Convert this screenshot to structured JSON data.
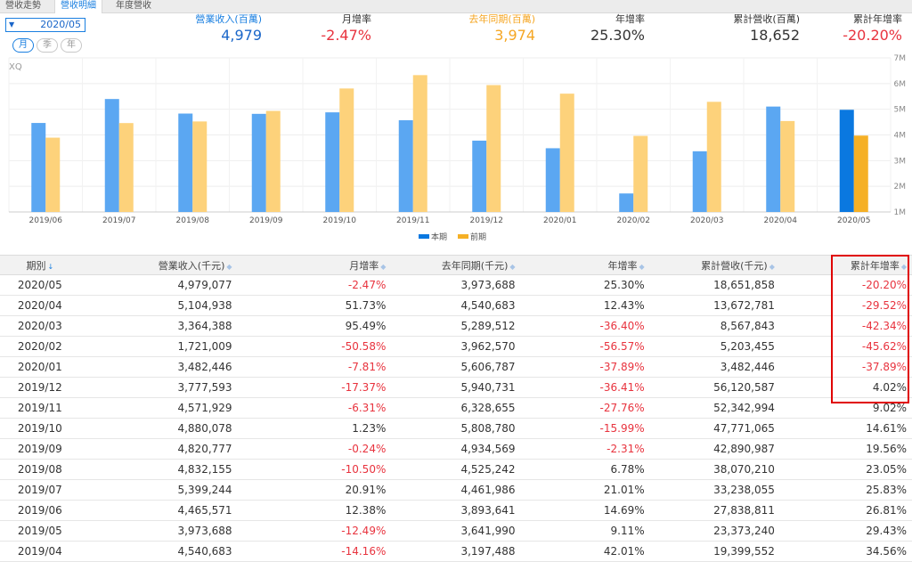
{
  "tabs": [
    "營收走勢",
    "營收明細",
    "年度營收"
  ],
  "active_tab": 1,
  "period": {
    "selected": "2020/05",
    "buttons": [
      "月",
      "季",
      "年"
    ],
    "active": 0
  },
  "stats": [
    {
      "label": "營業收入(百萬)",
      "value": "4,979",
      "label_color": "#1a7fe0",
      "value_color": "#1a66c9"
    },
    {
      "label": "月增率",
      "value": "-2.47%",
      "label_color": "#333333",
      "value_color": "#e8333e"
    },
    {
      "label": "去年同期(百萬)",
      "value": "3,974",
      "label_color": "#f5a623",
      "value_color": "#f5a623"
    },
    {
      "label": "年增率",
      "value": "25.30%",
      "label_color": "#333333",
      "value_color": "#333333"
    },
    {
      "label": "累計營收(百萬)",
      "value": "18,652",
      "label_color": "#333333",
      "value_color": "#333333"
    },
    {
      "label": "累計年增率",
      "value": "-20.20%",
      "label_color": "#333333",
      "value_color": "#e8333e"
    }
  ],
  "watermark": "XQ",
  "chart_data": {
    "type": "bar",
    "categories": [
      "2019/06",
      "2019/07",
      "2019/08",
      "2019/09",
      "2019/10",
      "2019/11",
      "2019/12",
      "2020/01",
      "2020/02",
      "2020/03",
      "2020/04",
      "2020/05"
    ],
    "series": [
      {
        "name": "本期",
        "values": [
          4466,
          5399,
          4832,
          4821,
          4880,
          4572,
          3778,
          3482,
          1721,
          3364,
          5105,
          4979
        ],
        "color": "#5ba7f2",
        "highlight_color": "#0a78e0"
      },
      {
        "name": "前期",
        "values": [
          3894,
          4462,
          4525,
          4935,
          5809,
          6329,
          5941,
          5607,
          3963,
          5290,
          4541,
          3974
        ],
        "color": "#fdd27b",
        "highlight_color": "#f5b026"
      }
    ],
    "highlight_index": 11,
    "ylim": [
      1000,
      7000
    ],
    "yticks": [
      "1M",
      "2M",
      "3M",
      "4M",
      "5M",
      "6M",
      "7M"
    ],
    "ytick_values": [
      1000,
      2000,
      3000,
      4000,
      5000,
      6000,
      7000
    ],
    "grid": true,
    "legend_position": "bottom-center"
  },
  "table": {
    "headers": [
      "期別",
      "營業收入(千元)",
      "月增率",
      "去年同期(千元)",
      "年增率",
      "累計營收(千元)",
      "累計年增率"
    ],
    "sort_icons": [
      "↓",
      "◆",
      "◆",
      "◆",
      "◆",
      "◆",
      "◆"
    ],
    "rows": [
      [
        "2020/05",
        "4,979,077",
        "-2.47%",
        "3,973,688",
        "25.30%",
        "18,651,858",
        "-20.20%"
      ],
      [
        "2020/04",
        "5,104,938",
        "51.73%",
        "4,540,683",
        "12.43%",
        "13,672,781",
        "-29.52%"
      ],
      [
        "2020/03",
        "3,364,388",
        "95.49%",
        "5,289,512",
        "-36.40%",
        "8,567,843",
        "-42.34%"
      ],
      [
        "2020/02",
        "1,721,009",
        "-50.58%",
        "3,962,570",
        "-56.57%",
        "5,203,455",
        "-45.62%"
      ],
      [
        "2020/01",
        "3,482,446",
        "-7.81%",
        "5,606,787",
        "-37.89%",
        "3,482,446",
        "-37.89%"
      ],
      [
        "2019/12",
        "3,777,593",
        "-17.37%",
        "5,940,731",
        "-36.41%",
        "56,120,587",
        "4.02%"
      ],
      [
        "2019/11",
        "4,571,929",
        "-6.31%",
        "6,328,655",
        "-27.76%",
        "52,342,994",
        "9.02%"
      ],
      [
        "2019/10",
        "4,880,078",
        "1.23%",
        "5,808,780",
        "-15.99%",
        "47,771,065",
        "14.61%"
      ],
      [
        "2019/09",
        "4,820,777",
        "-0.24%",
        "4,934,569",
        "-2.31%",
        "42,890,987",
        "19.56%"
      ],
      [
        "2019/08",
        "4,832,155",
        "-10.50%",
        "4,525,242",
        "6.78%",
        "38,070,210",
        "23.05%"
      ],
      [
        "2019/07",
        "5,399,244",
        "20.91%",
        "4,461,986",
        "21.01%",
        "33,238,055",
        "25.83%"
      ],
      [
        "2019/06",
        "4,465,571",
        "12.38%",
        "3,893,641",
        "14.69%",
        "27,838,811",
        "26.81%"
      ],
      [
        "2019/05",
        "3,973,688",
        "-12.49%",
        "3,641,990",
        "9.11%",
        "23,373,240",
        "29.43%"
      ],
      [
        "2019/04",
        "4,540,683",
        "-14.16%",
        "3,197,488",
        "42.01%",
        "19,399,552",
        "34.56%"
      ]
    ]
  },
  "highlight_box_color": "#e00000",
  "negative_color": "#e8333e"
}
